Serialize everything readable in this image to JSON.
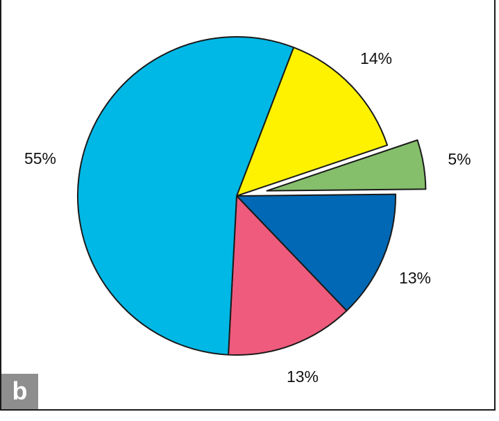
{
  "panel_label": "b",
  "chart_data": {
    "type": "pie",
    "start_angle_deg": 21,
    "direction": "clockwise",
    "slices": [
      {
        "value": 14,
        "label": "14%",
        "color": "#fff200",
        "exploded": false
      },
      {
        "value": 5,
        "label": "5%",
        "color": "#85bf6b",
        "exploded": true
      },
      {
        "value": 13,
        "label": "13%",
        "color": "#0068b4",
        "exploded": false
      },
      {
        "value": 13,
        "label": "13%",
        "color": "#ee5b7d",
        "exploded": false
      },
      {
        "value": 55,
        "label": "55%",
        "color": "#00b8e6",
        "exploded": false
      }
    ]
  }
}
